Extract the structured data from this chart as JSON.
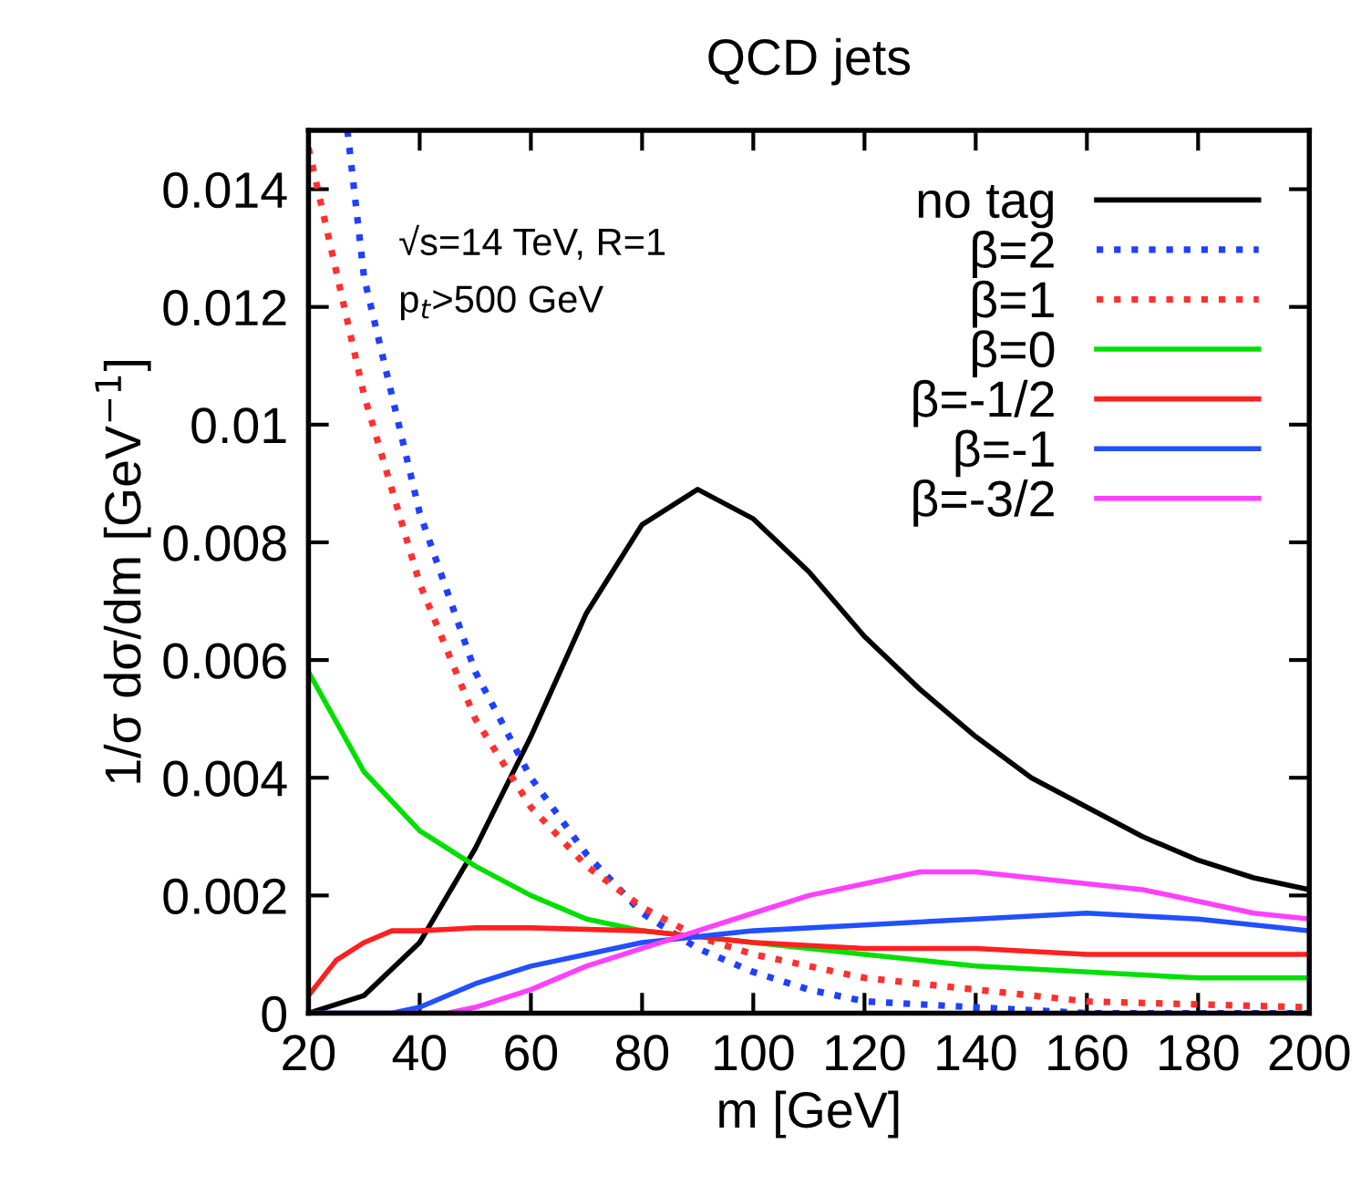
{
  "chart_data": {
    "type": "line",
    "title": "QCD jets",
    "xlabel": "m [GeV]",
    "ylabel": "1/σ dσ/dm [GeV$^{−1}$]",
    "annotations": [
      "√s=14 TeV, R=1",
      "p$_{t}$>500 GeV"
    ],
    "xlim": [
      20,
      200
    ],
    "xticks": [
      20,
      40,
      60,
      80,
      100,
      120,
      140,
      160,
      180,
      200
    ],
    "ylim": [
      0,
      0.015
    ],
    "yticks": [
      0,
      0.002,
      0.004,
      0.006,
      0.008,
      0.01,
      0.012,
      0.014
    ],
    "grid": false,
    "legend": "top right",
    "marker": "none",
    "series": [
      {
        "name": "no tag",
        "color": "#000000",
        "line_style": "solid",
        "x": [
          20,
          30,
          40,
          50,
          60,
          70,
          80,
          90,
          100,
          110,
          120,
          130,
          140,
          150,
          160,
          170,
          180,
          190,
          200
        ],
        "values": [
          0,
          0.0003,
          0.0012,
          0.0028,
          0.0047,
          0.0068,
          0.0083,
          0.0089,
          0.0084,
          0.0075,
          0.0064,
          0.0055,
          0.0047,
          0.004,
          0.0035,
          0.003,
          0.0026,
          0.0023,
          0.0021
        ]
      },
      {
        "name": "β=2",
        "color": "#2040ff",
        "line_style": "dotted",
        "x": [
          27,
          30,
          40,
          50,
          60,
          70,
          80,
          90,
          100,
          110,
          120,
          140,
          160,
          200
        ],
        "values": [
          0.015,
          0.0125,
          0.0085,
          0.0058,
          0.004,
          0.0027,
          0.0017,
          0.0011,
          0.0007,
          0.0004,
          0.0002,
          0.0001,
          0,
          0
        ]
      },
      {
        "name": "β=1",
        "color": "#ff3030",
        "line_style": "dotted",
        "x": [
          20,
          30,
          40,
          50,
          60,
          70,
          80,
          90,
          100,
          110,
          120,
          140,
          160,
          180,
          200
        ],
        "values": [
          0.0147,
          0.0105,
          0.0073,
          0.005,
          0.0035,
          0.0025,
          0.0018,
          0.0013,
          0.001,
          0.0008,
          0.0006,
          0.0004,
          0.0002,
          0.00015,
          0.0001
        ]
      },
      {
        "name": "β=0",
        "color": "#00e000",
        "line_style": "solid",
        "x": [
          20,
          30,
          40,
          50,
          60,
          70,
          80,
          90,
          100,
          120,
          140,
          160,
          180,
          200
        ],
        "values": [
          0.0058,
          0.0041,
          0.0031,
          0.0025,
          0.002,
          0.0016,
          0.0014,
          0.0013,
          0.0012,
          0.001,
          0.0008,
          0.0007,
          0.0006,
          0.0006
        ]
      },
      {
        "name": "β=-1/2",
        "color": "#ff2020",
        "line_style": "solid",
        "x": [
          20,
          25,
          30,
          35,
          40,
          50,
          60,
          80,
          90,
          100,
          120,
          140,
          160,
          180,
          200
        ],
        "values": [
          0.0003,
          0.0009,
          0.0012,
          0.0014,
          0.0014,
          0.00145,
          0.00145,
          0.0014,
          0.0013,
          0.0012,
          0.0011,
          0.0011,
          0.001,
          0.001,
          0.001
        ]
      },
      {
        "name": "β=-1",
        "color": "#2050ff",
        "line_style": "solid",
        "x": [
          20,
          35,
          40,
          50,
          60,
          70,
          80,
          90,
          100,
          120,
          140,
          160,
          180,
          200
        ],
        "values": [
          0,
          0,
          0.0001,
          0.0005,
          0.0008,
          0.001,
          0.0012,
          0.0013,
          0.0014,
          0.0015,
          0.0016,
          0.0017,
          0.0016,
          0.0014
        ]
      },
      {
        "name": "β=-3/2",
        "color": "#ff40ff",
        "line_style": "solid",
        "x": [
          20,
          45,
          50,
          60,
          70,
          80,
          90,
          100,
          110,
          120,
          130,
          140,
          150,
          160,
          170,
          180,
          190,
          200
        ],
        "values": [
          0,
          0,
          0.0001,
          0.0004,
          0.0008,
          0.0011,
          0.0014,
          0.0017,
          0.002,
          0.0022,
          0.0024,
          0.0024,
          0.0023,
          0.0022,
          0.0021,
          0.0019,
          0.0017,
          0.0016
        ]
      }
    ]
  }
}
